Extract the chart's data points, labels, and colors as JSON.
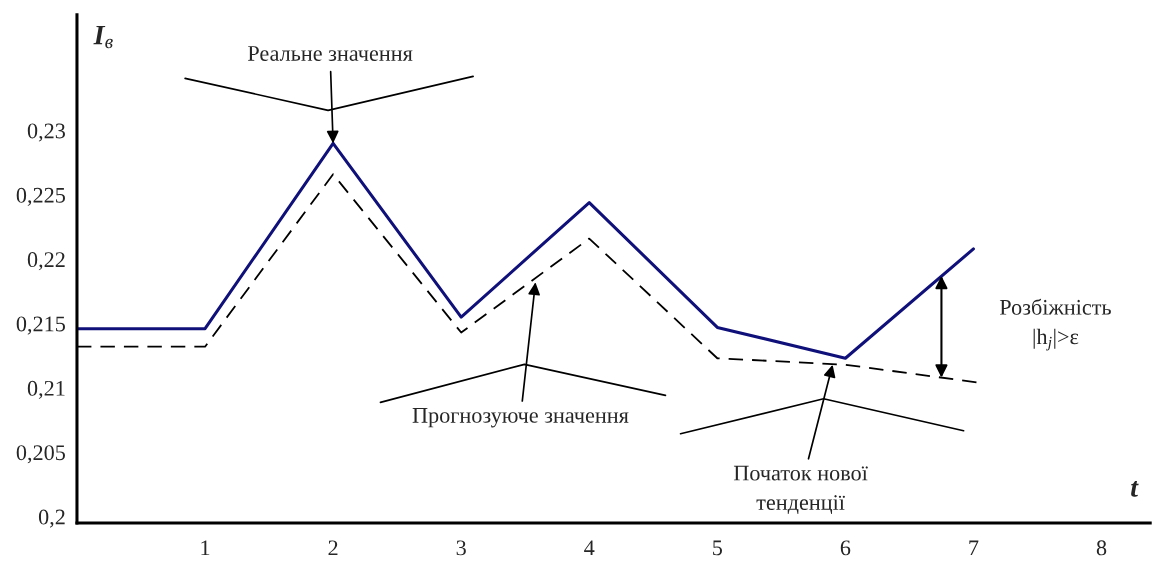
{
  "chart_data": {
    "type": "line",
    "xlabel": "t",
    "ylabel": "I$_{в}$",
    "x": [
      0,
      1,
      2,
      3,
      4,
      5,
      6,
      7
    ],
    "series": [
      {
        "color": "#10107a",
        "line_style": "solid",
        "values": [
          0.2146,
          0.2146,
          0.229,
          0.2155,
          0.2244,
          0.2147,
          0.2123,
          0.2208
        ]
      },
      {
        "color": "#000000",
        "line_style": "dashed",
        "x": [
          0,
          1,
          2,
          3,
          4,
          5,
          6,
          7.05
        ],
        "values": [
          0.2132,
          0.2132,
          0.2266,
          0.2143,
          0.2216,
          0.2123,
          0.2118,
          0.2104
        ]
      }
    ],
    "xlim": [
      0,
      8.38
    ],
    "ylim": [
      0.1995,
      0.239
    ],
    "xticks": [
      1,
      2,
      3,
      4,
      5,
      6,
      7,
      8
    ],
    "yticks": [
      {
        "value": 0.2,
        "label": "0,2"
      },
      {
        "value": 0.205,
        "label": "0,205"
      },
      {
        "value": 0.21,
        "label": "0,21"
      },
      {
        "value": 0.215,
        "label": "0,215"
      },
      {
        "value": 0.22,
        "label": "0,22"
      },
      {
        "value": 0.225,
        "label": "0,225"
      },
      {
        "value": 0.23,
        "label": "0,23"
      }
    ],
    "grid": false,
    "legend": false,
    "marker": "none",
    "annotations": [
      {
        "text": "Реальне значення",
        "x": 2,
        "y": 0.229
      },
      {
        "text": "Прогнозуюче значення",
        "x": 3.58,
        "y": 0.2182
      },
      {
        "text": "Початок нової\nтенденції",
        "x": 5.9,
        "y": 0.2118
      },
      {
        "text": "Розбіжність\n|h$_{j}$|>ε",
        "x": 6.75,
        "y": 0.2187
      }
    ]
  }
}
